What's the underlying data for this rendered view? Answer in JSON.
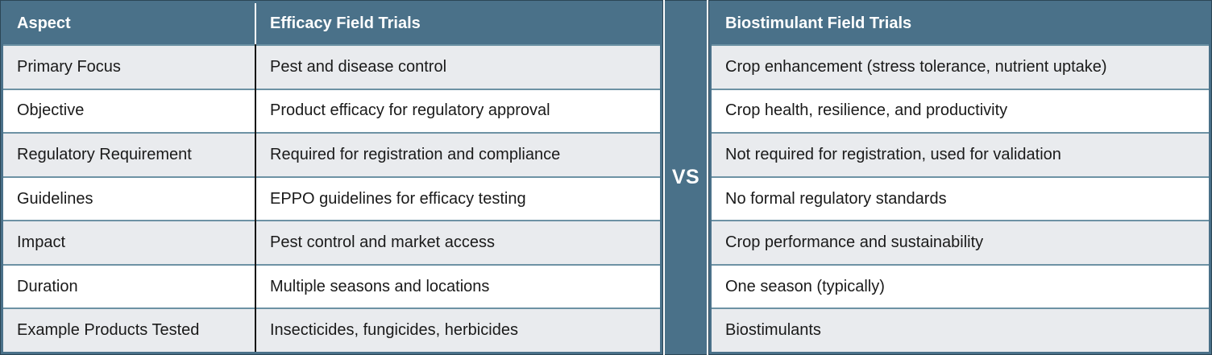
{
  "colors": {
    "teal": "#4A7189",
    "outline": "#2C4656",
    "sep": "#6D92A4",
    "rowAlt": "#E9EBEE",
    "blackDiv": "#141414",
    "text": "#1A1A1A",
    "headerText": "#FFFFFF"
  },
  "divider": {
    "label": "VS"
  },
  "left_table": {
    "headers": [
      "Aspect",
      "Efficacy Field Trials"
    ],
    "rows": [
      {
        "aspect": "Primary Focus",
        "value": "Pest and disease control"
      },
      {
        "aspect": "Objective",
        "value": "Product efficacy for regulatory approval"
      },
      {
        "aspect": "Regulatory Requirement",
        "value": "Required for registration and compliance"
      },
      {
        "aspect": "Guidelines",
        "value": "EPPO guidelines for efficacy testing"
      },
      {
        "aspect": "Impact",
        "value": "Pest control and market access"
      },
      {
        "aspect": "Duration",
        "value": "Multiple seasons and locations"
      },
      {
        "aspect": "Example Products Tested",
        "value": "Insecticides, fungicides, herbicides"
      }
    ]
  },
  "right_table": {
    "header": "Biostimulant Field Trials",
    "rows": [
      "Crop enhancement (stress tolerance, nutrient uptake)",
      "Crop health, resilience, and productivity",
      "Not required for registration, used for validation",
      "No formal regulatory standards",
      "Crop performance and sustainability",
      "One season (typically)",
      "Biostimulants"
    ]
  }
}
